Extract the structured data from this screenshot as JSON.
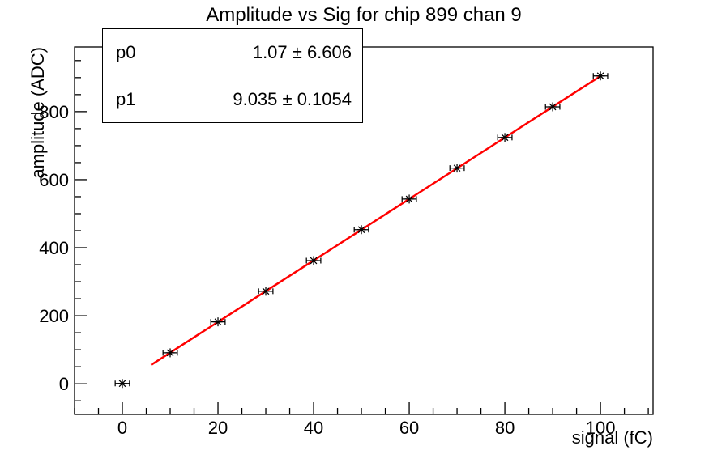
{
  "chart_data": {
    "type": "scatter",
    "title": "Amplitude vs Sig for chip 899 chan 9",
    "xlabel": "signal (fC)",
    "ylabel": "amplitude (ADC)",
    "xlim": [
      -10,
      111
    ],
    "ylim": [
      -90,
      990
    ],
    "x_tick_values": [
      0,
      20,
      40,
      60,
      80,
      100
    ],
    "y_tick_values": [
      0,
      200,
      400,
      600,
      800
    ],
    "x_major_step": 20,
    "y_major_step": 200,
    "x_minor_step": 5,
    "y_minor_step": 50,
    "grid": false,
    "legend_position": "none",
    "points": {
      "x": [
        0,
        10,
        20,
        30,
        40,
        50,
        60,
        70,
        80,
        90,
        100
      ],
      "y": [
        1,
        91,
        182,
        272,
        362,
        453,
        543,
        634,
        724,
        814,
        905
      ],
      "xerr": 1.5,
      "marker": "asterisk"
    },
    "fit": {
      "type": "linear",
      "p0": 1.07,
      "p1": 9.035,
      "x_start": 6,
      "x_end": 100
    },
    "colors": {
      "fit_line": "#ff0000",
      "marker": "#000000",
      "axis": "#000000",
      "background": "#ffffff"
    }
  },
  "stats": {
    "rows": [
      {
        "param": "p0",
        "value": "1.07 ± 6.606"
      },
      {
        "param": "p1",
        "value": "9.035 ± 0.1054"
      }
    ]
  }
}
